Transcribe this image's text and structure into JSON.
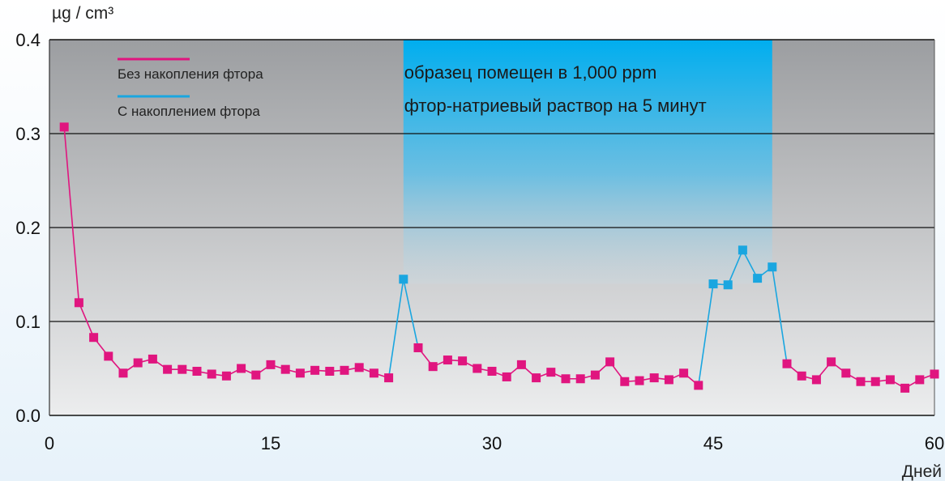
{
  "chart_data": {
    "type": "line",
    "ylabel": "µg / cm³",
    "xlabel": "Дней",
    "xlim": [
      0,
      60
    ],
    "ylim": [
      0,
      0.4
    ],
    "x_ticks": [
      "0",
      "15",
      "30",
      "45",
      "60"
    ],
    "y_ticks": [
      "0.0",
      "0.1",
      "0.2",
      "0.3",
      "0.4"
    ],
    "grid": true,
    "legend_position": "top-left",
    "annotation": {
      "lines": [
        "образец помещен в 1,000 ppm",
        "фтор-натриевый раствор на 5 минут"
      ],
      "x_range": [
        24,
        49
      ]
    },
    "series": [
      {
        "name": "Без накопления фтора",
        "color": "#e0157f",
        "points": [
          [
            1,
            0.307
          ],
          [
            2,
            0.12
          ],
          [
            3,
            0.083
          ],
          [
            4,
            0.063
          ],
          [
            5,
            0.045
          ],
          [
            6,
            0.056
          ],
          [
            7,
            0.06
          ],
          [
            8,
            0.049
          ],
          [
            9,
            0.049
          ],
          [
            10,
            0.047
          ],
          [
            11,
            0.044
          ],
          [
            12,
            0.042
          ],
          [
            13,
            0.05
          ],
          [
            14,
            0.043
          ],
          [
            15,
            0.054
          ],
          [
            16,
            0.049
          ],
          [
            17,
            0.045
          ],
          [
            18,
            0.048
          ],
          [
            19,
            0.047
          ],
          [
            20,
            0.048
          ],
          [
            21,
            0.051
          ],
          [
            22,
            0.045
          ],
          [
            23,
            0.04
          ],
          [
            25,
            0.072
          ],
          [
            26,
            0.052
          ],
          [
            27,
            0.059
          ],
          [
            28,
            0.058
          ],
          [
            29,
            0.05
          ],
          [
            30,
            0.047
          ],
          [
            31,
            0.041
          ],
          [
            32,
            0.054
          ],
          [
            33,
            0.04
          ],
          [
            34,
            0.046
          ],
          [
            35,
            0.039
          ],
          [
            36,
            0.039
          ],
          [
            37,
            0.043
          ],
          [
            38,
            0.057
          ],
          [
            39,
            0.036
          ],
          [
            40,
            0.037
          ],
          [
            41,
            0.04
          ],
          [
            42,
            0.038
          ],
          [
            43,
            0.045
          ],
          [
            44,
            0.032
          ],
          [
            50,
            0.055
          ],
          [
            51,
            0.042
          ],
          [
            52,
            0.038
          ],
          [
            53,
            0.057
          ],
          [
            54,
            0.045
          ],
          [
            55,
            0.036
          ],
          [
            56,
            0.036
          ],
          [
            57,
            0.038
          ],
          [
            58,
            0.029
          ],
          [
            59,
            0.038
          ],
          [
            60,
            0.044
          ]
        ]
      },
      {
        "name": "С накоплением фтора",
        "color": "#1aa6e0",
        "points": [
          [
            24,
            0.145
          ],
          [
            45,
            0.14
          ],
          [
            46,
            0.139
          ],
          [
            47,
            0.176
          ],
          [
            48,
            0.146
          ],
          [
            49,
            0.158
          ]
        ]
      }
    ],
    "connector_color": "#1aa6e0"
  }
}
